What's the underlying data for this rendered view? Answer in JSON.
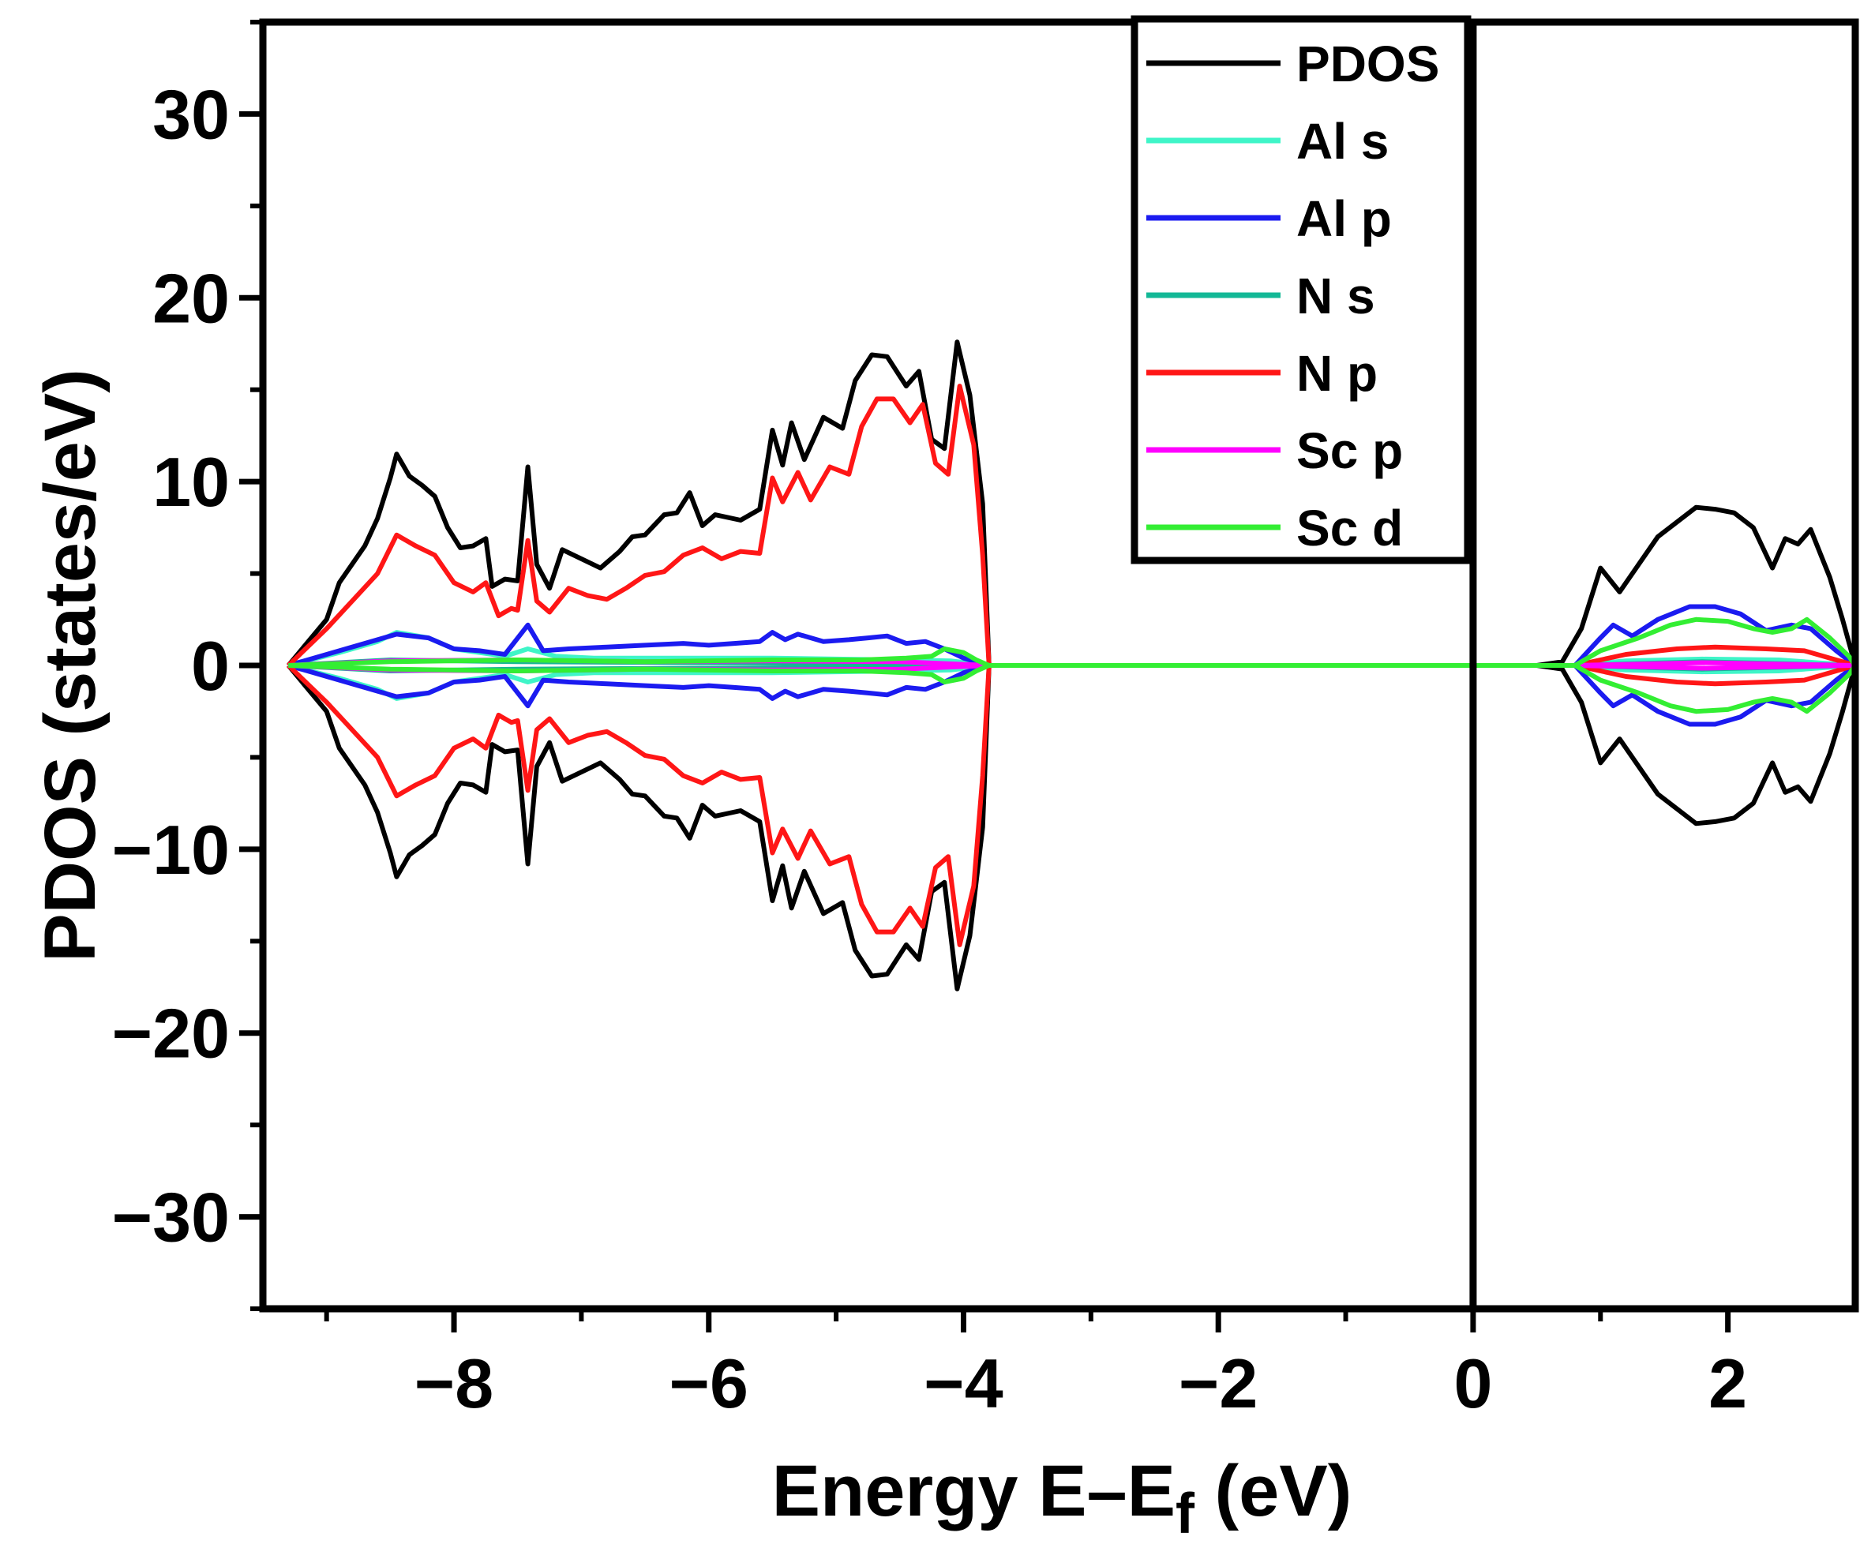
{
  "chart_data": {
    "type": "line",
    "title": "",
    "xlabel": "Energy E–E",
    "xlabel_sub": "f",
    "xlabel_unit": " (eV)",
    "ylabel": "PDOS (states/eV)",
    "xlim": [
      -9.5,
      3.0
    ],
    "ylim": [
      -35,
      35
    ],
    "xticks": [
      -8,
      -6,
      -4,
      -2,
      0,
      2
    ],
    "xtick_labels": [
      "−8",
      "−6",
      "−4",
      "−2",
      "0",
      "2"
    ],
    "yticks": [
      30,
      20,
      10,
      0,
      -10,
      -20,
      -30
    ],
    "ytick_labels": [
      "30",
      "20",
      "10",
      "0",
      "−10",
      "−20",
      "−30"
    ],
    "fermi_level": 0,
    "symmetric_spin": true,
    "legend_position": "top-center",
    "series": [
      {
        "name": "PDOS",
        "color": "#000000",
        "points": [
          [
            -9.3,
            0
          ],
          [
            -9.0,
            2.5
          ],
          [
            -8.9,
            4.5
          ],
          [
            -8.7,
            6.5
          ],
          [
            -8.6,
            8.0
          ],
          [
            -8.5,
            10.2
          ],
          [
            -8.45,
            11.5
          ],
          [
            -8.35,
            10.3
          ],
          [
            -8.25,
            9.8
          ],
          [
            -8.15,
            9.2
          ],
          [
            -8.05,
            7.5
          ],
          [
            -7.95,
            6.4
          ],
          [
            -7.85,
            6.5
          ],
          [
            -7.75,
            6.9
          ],
          [
            -7.7,
            4.3
          ],
          [
            -7.6,
            4.7
          ],
          [
            -7.5,
            4.6
          ],
          [
            -7.42,
            10.8
          ],
          [
            -7.35,
            5.5
          ],
          [
            -7.25,
            4.2
          ],
          [
            -7.15,
            6.3
          ],
          [
            -7.0,
            5.8
          ],
          [
            -6.85,
            5.3
          ],
          [
            -6.7,
            6.2
          ],
          [
            -6.6,
            7.0
          ],
          [
            -6.5,
            7.1
          ],
          [
            -6.35,
            8.2
          ],
          [
            -6.25,
            8.3
          ],
          [
            -6.15,
            9.4
          ],
          [
            -6.05,
            7.6
          ],
          [
            -5.95,
            8.2
          ],
          [
            -5.75,
            7.9
          ],
          [
            -5.6,
            8.5
          ],
          [
            -5.5,
            12.8
          ],
          [
            -5.42,
            10.9
          ],
          [
            -5.35,
            13.2
          ],
          [
            -5.25,
            11.2
          ],
          [
            -5.1,
            13.5
          ],
          [
            -4.95,
            12.9
          ],
          [
            -4.85,
            15.5
          ],
          [
            -4.72,
            16.9
          ],
          [
            -4.6,
            16.8
          ],
          [
            -4.45,
            15.2
          ],
          [
            -4.35,
            16.0
          ],
          [
            -4.25,
            12.3
          ],
          [
            -4.15,
            11.8
          ],
          [
            -4.05,
            17.6
          ],
          [
            -3.95,
            14.7
          ],
          [
            -3.85,
            8.8
          ],
          [
            -3.8,
            0
          ],
          [
            -2,
            0
          ],
          [
            0,
            0
          ],
          [
            0.5,
            0
          ],
          [
            0.7,
            0.2
          ],
          [
            0.85,
            2.0
          ],
          [
            1.0,
            5.3
          ],
          [
            1.15,
            4.0
          ],
          [
            1.3,
            5.5
          ],
          [
            1.45,
            7.0
          ],
          [
            1.6,
            7.8
          ],
          [
            1.75,
            8.6
          ],
          [
            1.9,
            8.5
          ],
          [
            2.05,
            8.3
          ],
          [
            2.2,
            7.5
          ],
          [
            2.35,
            5.3
          ],
          [
            2.45,
            6.9
          ],
          [
            2.55,
            6.6
          ],
          [
            2.65,
            7.4
          ],
          [
            2.8,
            4.8
          ],
          [
            2.9,
            2.5
          ],
          [
            3.0,
            0
          ]
        ]
      },
      {
        "name": "Al s",
        "color": "#3ff5c8",
        "points": [
          [
            -9.3,
            0
          ],
          [
            -8.9,
            0.7
          ],
          [
            -8.6,
            1.3
          ],
          [
            -8.45,
            1.8
          ],
          [
            -8.2,
            1.5
          ],
          [
            -8.0,
            0.9
          ],
          [
            -7.8,
            0.7
          ],
          [
            -7.6,
            0.5
          ],
          [
            -7.42,
            0.9
          ],
          [
            -7.2,
            0.5
          ],
          [
            -6.9,
            0.4
          ],
          [
            -6.5,
            0.4
          ],
          [
            -6.0,
            0.4
          ],
          [
            -5.5,
            0.4
          ],
          [
            -5.0,
            0.35
          ],
          [
            -4.5,
            0.3
          ],
          [
            -4.1,
            0.25
          ],
          [
            -3.8,
            0
          ],
          [
            0.8,
            0
          ],
          [
            1.2,
            0.25
          ],
          [
            1.8,
            0.35
          ],
          [
            2.4,
            0.3
          ],
          [
            3.0,
            0
          ]
        ]
      },
      {
        "name": "Al p",
        "color": "#1b1bf0",
        "points": [
          [
            -9.3,
            0
          ],
          [
            -8.9,
            0.8
          ],
          [
            -8.6,
            1.4
          ],
          [
            -8.45,
            1.7
          ],
          [
            -8.2,
            1.5
          ],
          [
            -8.0,
            0.9
          ],
          [
            -7.8,
            0.8
          ],
          [
            -7.6,
            0.6
          ],
          [
            -7.42,
            2.2
          ],
          [
            -7.3,
            0.8
          ],
          [
            -7.1,
            0.9
          ],
          [
            -6.8,
            1.0
          ],
          [
            -6.5,
            1.1
          ],
          [
            -6.2,
            1.2
          ],
          [
            -6.0,
            1.1
          ],
          [
            -5.8,
            1.2
          ],
          [
            -5.6,
            1.3
          ],
          [
            -5.5,
            1.8
          ],
          [
            -5.4,
            1.4
          ],
          [
            -5.3,
            1.7
          ],
          [
            -5.1,
            1.3
          ],
          [
            -4.9,
            1.4
          ],
          [
            -4.75,
            1.5
          ],
          [
            -4.6,
            1.6
          ],
          [
            -4.45,
            1.2
          ],
          [
            -4.3,
            1.3
          ],
          [
            -4.15,
            0.9
          ],
          [
            -4.0,
            0.4
          ],
          [
            -3.8,
            0
          ],
          [
            0.8,
            0
          ],
          [
            1.0,
            1.5
          ],
          [
            1.1,
            2.2
          ],
          [
            1.25,
            1.6
          ],
          [
            1.45,
            2.5
          ],
          [
            1.7,
            3.2
          ],
          [
            1.9,
            3.2
          ],
          [
            2.1,
            2.8
          ],
          [
            2.3,
            1.9
          ],
          [
            2.5,
            2.2
          ],
          [
            2.65,
            2.0
          ],
          [
            2.85,
            0.8
          ],
          [
            3.0,
            0
          ]
        ]
      },
      {
        "name": "N s",
        "color": "#13b896",
        "points": [
          [
            -9.3,
            0
          ],
          [
            -8.5,
            0.3
          ],
          [
            -7.5,
            0.2
          ],
          [
            -6.0,
            0.15
          ],
          [
            -4.5,
            0.1
          ],
          [
            -3.8,
            0
          ],
          [
            0.8,
            0
          ],
          [
            1.8,
            0.2
          ],
          [
            3.0,
            0
          ]
        ]
      },
      {
        "name": "N p",
        "color": "#ff1616",
        "points": [
          [
            -9.3,
            0
          ],
          [
            -9.0,
            2.0
          ],
          [
            -8.8,
            3.5
          ],
          [
            -8.6,
            5.0
          ],
          [
            -8.45,
            7.1
          ],
          [
            -8.3,
            6.5
          ],
          [
            -8.15,
            6.0
          ],
          [
            -8.0,
            4.5
          ],
          [
            -7.85,
            4.0
          ],
          [
            -7.75,
            4.5
          ],
          [
            -7.65,
            2.7
          ],
          [
            -7.55,
            3.1
          ],
          [
            -7.5,
            3.0
          ],
          [
            -7.42,
            6.8
          ],
          [
            -7.35,
            3.5
          ],
          [
            -7.25,
            2.9
          ],
          [
            -7.1,
            4.2
          ],
          [
            -6.95,
            3.8
          ],
          [
            -6.8,
            3.6
          ],
          [
            -6.65,
            4.2
          ],
          [
            -6.5,
            4.9
          ],
          [
            -6.35,
            5.1
          ],
          [
            -6.2,
            6.0
          ],
          [
            -6.05,
            6.4
          ],
          [
            -5.9,
            5.8
          ],
          [
            -5.75,
            6.2
          ],
          [
            -5.6,
            6.1
          ],
          [
            -5.5,
            10.2
          ],
          [
            -5.42,
            8.9
          ],
          [
            -5.3,
            10.5
          ],
          [
            -5.2,
            9.0
          ],
          [
            -5.05,
            10.8
          ],
          [
            -4.9,
            10.4
          ],
          [
            -4.8,
            13.0
          ],
          [
            -4.68,
            14.5
          ],
          [
            -4.55,
            14.5
          ],
          [
            -4.42,
            13.2
          ],
          [
            -4.32,
            14.2
          ],
          [
            -4.22,
            11.0
          ],
          [
            -4.12,
            10.4
          ],
          [
            -4.03,
            15.2
          ],
          [
            -3.92,
            12.0
          ],
          [
            -3.85,
            6.0
          ],
          [
            -3.8,
            0
          ],
          [
            0.8,
            0
          ],
          [
            1.2,
            0.6
          ],
          [
            1.6,
            0.9
          ],
          [
            1.9,
            1.0
          ],
          [
            2.3,
            0.9
          ],
          [
            2.6,
            0.8
          ],
          [
            3.0,
            0
          ]
        ]
      },
      {
        "name": "Sc p",
        "color": "#ff00ff",
        "points": [
          [
            -9.3,
            0
          ],
          [
            -8.5,
            0.25
          ],
          [
            -7.5,
            0.3
          ],
          [
            -6.5,
            0.2
          ],
          [
            -5.5,
            0.25
          ],
          [
            -4.5,
            0.2
          ],
          [
            -3.8,
            0
          ],
          [
            0.8,
            0
          ],
          [
            1.8,
            0.15
          ],
          [
            3.0,
            0
          ]
        ]
      },
      {
        "name": "Sc d",
        "color": "#33ee33",
        "points": [
          [
            -9.3,
            0
          ],
          [
            -8.5,
            0.2
          ],
          [
            -7.5,
            0.3
          ],
          [
            -6.5,
            0.2
          ],
          [
            -5.5,
            0.3
          ],
          [
            -4.8,
            0.3
          ],
          [
            -4.45,
            0.4
          ],
          [
            -4.25,
            0.5
          ],
          [
            -4.15,
            0.9
          ],
          [
            -4.0,
            0.7
          ],
          [
            -3.9,
            0.3
          ],
          [
            -3.8,
            0
          ],
          [
            0.8,
            0
          ],
          [
            1.0,
            0.8
          ],
          [
            1.3,
            1.5
          ],
          [
            1.55,
            2.2
          ],
          [
            1.75,
            2.5
          ],
          [
            2.0,
            2.4
          ],
          [
            2.2,
            2.0
          ],
          [
            2.35,
            1.8
          ],
          [
            2.5,
            2.0
          ],
          [
            2.62,
            2.5
          ],
          [
            2.8,
            1.5
          ],
          [
            2.95,
            0.5
          ],
          [
            3.0,
            0
          ]
        ]
      }
    ]
  }
}
